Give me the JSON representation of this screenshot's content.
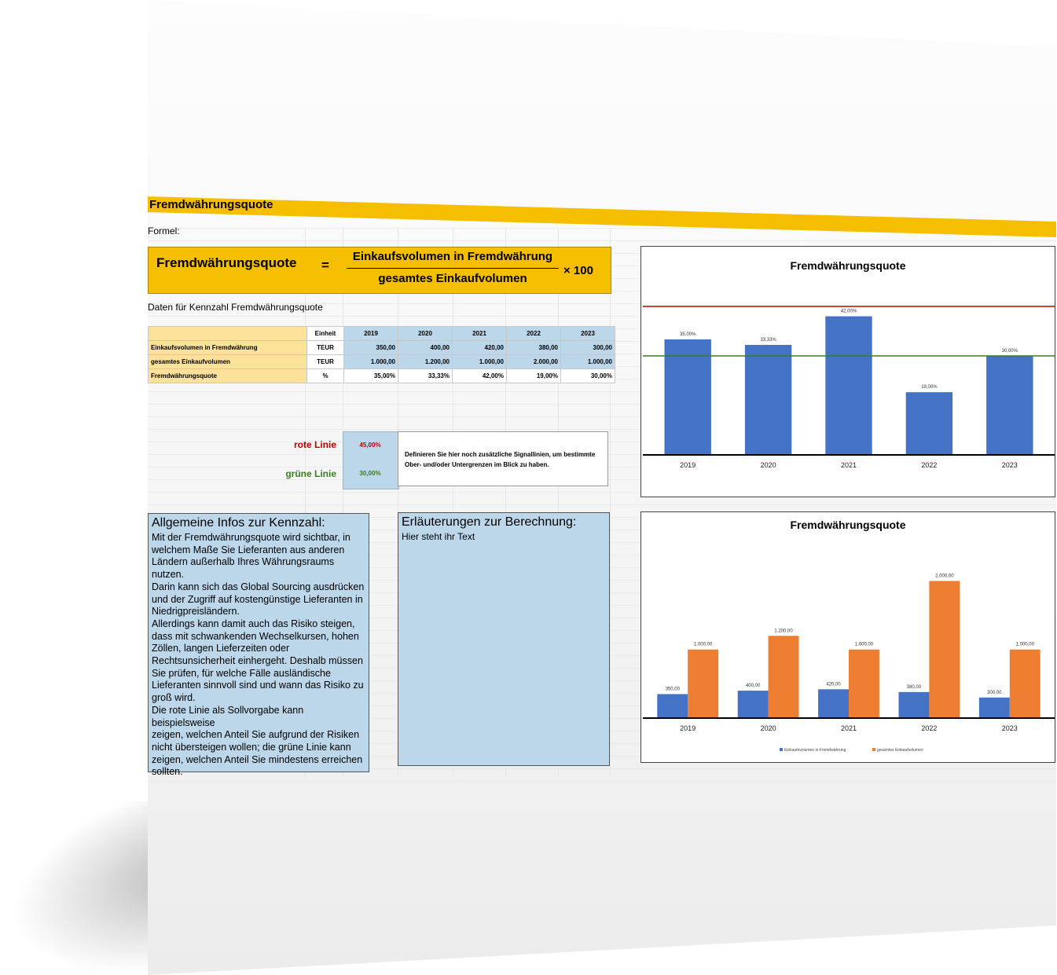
{
  "header": {
    "title": "Fremdwährungsquote",
    "formel_label": "Formel:"
  },
  "formula": {
    "left": "Fremdwährungsquote",
    "equals": "=",
    "numerator": "Einkaufsvolumen in Fremdwährung",
    "denominator": "gesamtes Einkaufvolumen",
    "multiplier": "× 100"
  },
  "data_title": "Daten für Kennzahl Fremdwährungsquote",
  "table": {
    "unit_header": "Einheit",
    "years": [
      "2019",
      "2020",
      "2021",
      "2022",
      "2023"
    ],
    "rows": [
      {
        "label": "Einkaufsvolumen in Fremdwährung",
        "unit": "TEUR",
        "values": [
          "350,00",
          "400,00",
          "420,00",
          "380,00",
          "300,00"
        ]
      },
      {
        "label": "gesamtes Einkaufvolumen",
        "unit": "TEUR",
        "values": [
          "1.000,00",
          "1.200,00",
          "1.000,00",
          "2.000,00",
          "1.000,00"
        ]
      },
      {
        "label": "Fremdwährungsquote",
        "unit": "%",
        "values": [
          "35,00%",
          "33,33%",
          "42,00%",
          "19,00%",
          "30,00%"
        ]
      }
    ]
  },
  "signals": {
    "red_label": "rote Linie",
    "red_value": "45,00%",
    "green_label": "grüne Linie",
    "green_value": "30,00%",
    "note": "Definieren Sie hier noch zusätzliche Signallinien, um bestimmte Ober- und/oder Untergrenzen im Blick zu haben.",
    "red_color": "#c00000",
    "green_color": "#3a7d22"
  },
  "info": {
    "title": "Allgemeine Infos zur Kennzahl:",
    "lines": [
      "Mit der Fremdwährungsquote wird sichtbar, in",
      "welchem Maße Sie Lieferanten aus anderen",
      "Ländern außerhalb Ihres Währungsraums nutzen.",
      "Darin kann sich das Global Sourcing ausdrücken",
      "und der Zugriff auf kostengünstige Lieferanten in",
      "Niedrigpreisländern.",
      "Allerdings kann damit auch das Risiko steigen,",
      "dass mit schwankenden Wechselkursen, hohen",
      "Zöllen, langen Lieferzeiten oder",
      "Rechtsunsicherheit einhergeht. Deshalb müssen",
      "Sie prüfen, für welche Fälle ausländische",
      "Lieferanten sinnvoll sind und wann das Risiko zu",
      "groß wird.",
      "Die rote Linie als Sollvorgabe kann beispielsweise",
      "zeigen, welchen Anteil Sie aufgrund der Risiken",
      "nicht übersteigen wollen; die grüne Linie kann",
      "zeigen, welchen Anteil Sie mindestens erreichen",
      "sollten."
    ]
  },
  "erlaeuterung": {
    "title": "Erläuterungen zur Berechnung:",
    "text": "Hier steht ihr Text"
  },
  "chart_data": [
    {
      "type": "bar",
      "title": "Fremdwährungsquote",
      "categories": [
        "2019",
        "2020",
        "2021",
        "2022",
        "2023"
      ],
      "values": [
        35.0,
        33.33,
        42.0,
        19.0,
        30.0
      ],
      "labels": [
        "35,00%",
        "33,33%",
        "42,00%",
        "19,00%",
        "30,00%"
      ],
      "ylim": [
        0,
        50
      ],
      "reference_lines": [
        {
          "value": 45.0,
          "color": "#c00000"
        },
        {
          "value": 30.0,
          "color": "#3a7d22"
        }
      ],
      "bar_color": "#4472c4"
    },
    {
      "type": "bar",
      "title": "Fremdwährungsquote",
      "categories": [
        "2019",
        "2020",
        "2021",
        "2022",
        "2023"
      ],
      "series": [
        {
          "name": "Einkaufsvolumen in Fremdwährung",
          "values": [
            350,
            400,
            420,
            380,
            300
          ],
          "labels": [
            "350,00",
            "400,00",
            "420,00",
            "380,00",
            "300,00"
          ],
          "color": "#4472c4"
        },
        {
          "name": "gesamtes Einkaufvolumen",
          "values": [
            1000,
            1200,
            1000,
            2000,
            1000
          ],
          "labels": [
            "1.000,00",
            "1.200,00",
            "1.000,00",
            "2.000,00",
            "1.000,00"
          ],
          "color": "#ed7d31"
        }
      ],
      "ylim": [
        0,
        2200
      ],
      "legend": "bottom"
    }
  ]
}
